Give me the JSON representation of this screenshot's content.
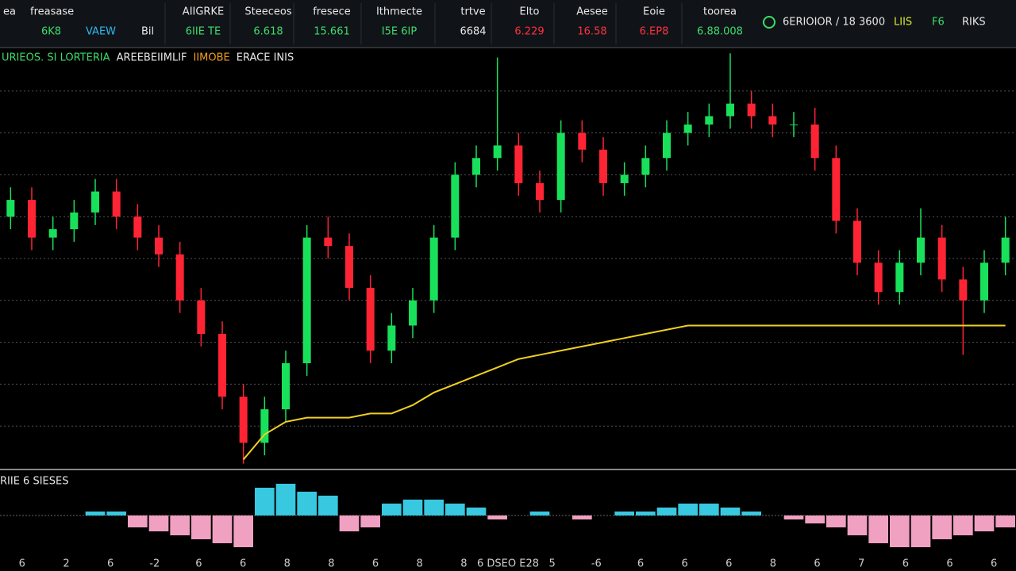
{
  "header": {
    "left": [
      {
        "text": "ea",
        "color": "#e8e8e8"
      },
      {
        "text": "freasase",
        "color": "#e8e8e8"
      }
    ],
    "left_values": [
      {
        "text": "6K8",
        "color": "#3ddc6a"
      },
      {
        "text": "VAEW",
        "color": "#2fb8f0"
      },
      {
        "text": "Bil",
        "color": "#e8e8e8"
      }
    ],
    "columns": [
      {
        "label": "AIIGRKE",
        "value": "6IIE TE",
        "color": "#3ddc6a"
      },
      {
        "label": "Steeceos",
        "value": "6.618",
        "color": "#3ddc6a"
      },
      {
        "label": "fresece",
        "value": "15.661",
        "color": "#3ddc6a"
      },
      {
        "label": "Ithmecte",
        "value": "I5E 6IP",
        "color": "#3ddc6a"
      },
      {
        "label": "trtve",
        "value": "6684",
        "color": "#e8e8e8"
      },
      {
        "label": "Elto",
        "value": "6.229",
        "color": "#ff3040"
      },
      {
        "label": "Aesee",
        "value": "16.58",
        "color": "#ff3040"
      },
      {
        "label": "Eoie",
        "value": "6.EP8",
        "color": "#ff3040"
      },
      {
        "label": "toorea",
        "value": "6.88.008",
        "color": "#3ddc6a"
      }
    ],
    "right": [
      {
        "text": "6ERIOIOR / 18 3600",
        "color": "#e8e8e8"
      },
      {
        "text": "LIIS",
        "color": "#d8e830"
      },
      {
        "text": "F6",
        "color": "#3ddc6a"
      },
      {
        "text": "RIKS",
        "color": "#e8e8e8"
      }
    ]
  },
  "legend_text": [
    {
      "text": "URIEOS. SI LORTERIA",
      "color": "#3ddc6a"
    },
    {
      "text": "AREEBEIIMLIF",
      "color": "#e8e8e8"
    },
    {
      "text": "IIMOBE",
      "color": "#f0a020"
    },
    {
      "text": "ERACE INIS",
      "color": "#e8e8e8"
    }
  ],
  "lower_label": "RIIE 6 SIESES",
  "bottom_axis": [
    "6",
    "2",
    "6",
    "-2",
    "6",
    "6",
    "8",
    "8",
    "6",
    "8",
    "8",
    "6 DSEO E28",
    "5",
    "-6",
    "6",
    "6",
    "6",
    "8",
    "6",
    "7",
    "6",
    "6",
    "6"
  ],
  "chart_data": [
    {
      "type": "candlestick",
      "up_color": "#19e05a",
      "down_color": "#ff2434",
      "ylim": [
        0,
        100
      ],
      "yticks": [
        10,
        20,
        30,
        40,
        50,
        60,
        70,
        80,
        90
      ],
      "grid": true,
      "open": [
        60,
        64,
        55,
        57,
        61,
        66,
        60,
        55,
        51,
        40,
        32,
        17,
        6,
        14,
        25,
        55,
        53,
        43,
        28,
        34,
        40,
        55,
        70,
        74,
        77,
        68,
        64,
        80,
        76,
        68,
        70,
        74,
        80,
        82,
        84,
        87,
        84,
        82,
        82,
        74,
        59,
        49,
        42,
        49,
        55,
        45,
        40,
        49
      ],
      "high": [
        67,
        67,
        60,
        64,
        69,
        69,
        63,
        58,
        54,
        43,
        35,
        20,
        17,
        28,
        58,
        60,
        56,
        46,
        37,
        43,
        58,
        73,
        77,
        98,
        80,
        71,
        83,
        83,
        79,
        73,
        77,
        83,
        85,
        87,
        99,
        90,
        87,
        85,
        86,
        77,
        62,
        52,
        52,
        62,
        58,
        48,
        52,
        60
      ],
      "low": [
        57,
        52,
        52,
        54,
        58,
        57,
        52,
        48,
        37,
        29,
        14,
        1,
        3,
        11,
        22,
        50,
        40,
        25,
        25,
        31,
        37,
        52,
        67,
        71,
        65,
        61,
        61,
        73,
        65,
        65,
        67,
        71,
        77,
        79,
        81,
        81,
        79,
        79,
        71,
        56,
        46,
        39,
        39,
        46,
        42,
        27,
        37,
        46
      ],
      "close": [
        64,
        55,
        57,
        61,
        66,
        60,
        55,
        51,
        40,
        32,
        17,
        6,
        14,
        25,
        55,
        53,
        43,
        28,
        34,
        40,
        55,
        70,
        74,
        77,
        68,
        64,
        80,
        76,
        68,
        70,
        74,
        80,
        82,
        84,
        87,
        84,
        82,
        82,
        74,
        59,
        49,
        42,
        49,
        55,
        45,
        40,
        49,
        55
      ],
      "ma": {
        "color": "#f0d020",
        "values": [
          null,
          null,
          null,
          null,
          null,
          null,
          null,
          null,
          null,
          null,
          null,
          2,
          8,
          11,
          12,
          12,
          12,
          13,
          13,
          15,
          18,
          20,
          22,
          24,
          26,
          27,
          28,
          29,
          30,
          31,
          32,
          33,
          34,
          34,
          34,
          34,
          34,
          34,
          34,
          34,
          34,
          34,
          34,
          34,
          34,
          34,
          34,
          34
        ]
      }
    },
    {
      "type": "bar",
      "pos_color": "#38c8e0",
      "neg_color": "#f0a0c0",
      "ylim": [
        -10,
        10
      ],
      "values": [
        0,
        0,
        0,
        0,
        1,
        1,
        -3,
        -4,
        -5,
        -6,
        -7,
        -8,
        7,
        8,
        6,
        5,
        -4,
        -3,
        3,
        4,
        4,
        3,
        2,
        -1,
        0,
        1,
        0,
        -1,
        0,
        1,
        1,
        2,
        3,
        3,
        2,
        1,
        0,
        -1,
        -2,
        -3,
        -5,
        -7,
        -8,
        -8,
        -6,
        -5,
        -4,
        -3
      ]
    }
  ]
}
